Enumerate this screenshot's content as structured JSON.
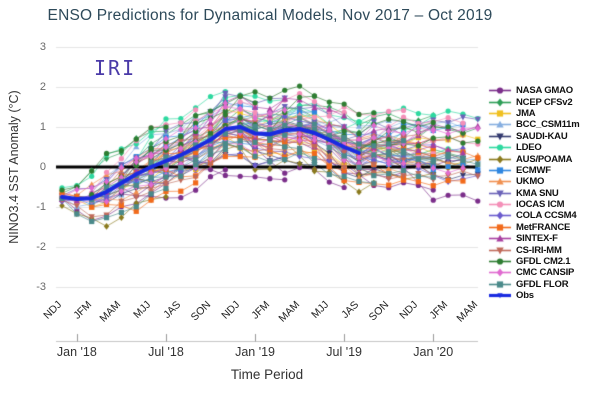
{
  "title": "ENSO Predictions for Dynamical Models, Nov 2017 – Oct 2019",
  "watermark": "IRI",
  "axes": {
    "y_title": "NINO3.4 SST Anomaly (°C)",
    "y_tick_values": [
      3,
      2,
      1,
      0,
      -1,
      -2,
      -3
    ],
    "y_tick_labels": [
      "3",
      "2",
      "1",
      "0",
      "-1",
      "-2",
      "-3"
    ],
    "x_title": "Time Period",
    "season_labels": [
      "NDJ",
      "JFM",
      "MAM",
      "MJJ",
      "JAS",
      "SON",
      "NDJ",
      "JFM",
      "MAM",
      "MJJ",
      "JAS",
      "SON",
      "NDJ",
      "JFM",
      "MAM"
    ],
    "date_labels": [
      "Jan '18",
      "Jul '18",
      "Jan '19",
      "Jul '19",
      "Jan '20"
    ],
    "date_tick_months": [
      1,
      7,
      13,
      19,
      25
    ]
  },
  "legend": {
    "items": [
      {
        "label": "NASA GMAO",
        "color": "#7b2e8a",
        "marker": "circle"
      },
      {
        "label": "NCEP CFSv2",
        "color": "#2e9e57",
        "marker": "diamond"
      },
      {
        "label": "JMA",
        "color": "#f0c020",
        "marker": "square"
      },
      {
        "label": "BCC_CSM11m",
        "color": "#85aee0",
        "marker": "triangle-up"
      },
      {
        "label": "SAUDI-KAU",
        "color": "#32396e",
        "marker": "triangle-down"
      },
      {
        "label": "LDEO",
        "color": "#2ed9a0",
        "marker": "circle"
      },
      {
        "label": "AUS/POAMA",
        "color": "#8a7a1e",
        "marker": "diamond"
      },
      {
        "label": "ECMWF",
        "color": "#2e86e0",
        "marker": "square"
      },
      {
        "label": "UKMO",
        "color": "#f09050",
        "marker": "triangle-up"
      },
      {
        "label": "KMA SNU",
        "color": "#6a62b8",
        "marker": "triangle-down"
      },
      {
        "label": "IOCAS ICM",
        "color": "#f48fb8",
        "marker": "circle"
      },
      {
        "label": "COLA CCSM4",
        "color": "#6a5acd",
        "marker": "diamond"
      },
      {
        "label": "MetFRANCE",
        "color": "#f26a1b",
        "marker": "square"
      },
      {
        "label": "SINTEX-F",
        "color": "#a83fa0",
        "marker": "triangle-up"
      },
      {
        "label": "CS-IRI-MM",
        "color": "#c06a5a",
        "marker": "triangle-down"
      },
      {
        "label": "GFDL CM2.1",
        "color": "#2e7d32",
        "marker": "circle"
      },
      {
        "label": "CMC CANSIP",
        "color": "#e06ad0",
        "marker": "diamond"
      },
      {
        "label": "GFDL FLOR",
        "color": "#4a8a8a",
        "marker": "square"
      },
      {
        "label": "Obs",
        "color": "#1a2be0",
        "marker": "line"
      }
    ]
  },
  "chart_data": {
    "type": "line",
    "title": "ENSO Predictions for Dynamical Models, Nov 2017 – Oct 2019",
    "xlabel": "Time Period",
    "ylabel": "NINO3.4 SST Anomaly (°C)",
    "ylim": [
      -3,
      3
    ],
    "grid": true,
    "legend_position": "right",
    "x_seasons": [
      "NDJ",
      "JFM",
      "MAM",
      "MJJ",
      "JAS",
      "SON",
      "NDJ",
      "JFM",
      "MAM",
      "MJJ",
      "JAS",
      "SON",
      "NDJ",
      "JFM",
      "MAM"
    ],
    "obs": {
      "name": "Obs",
      "color": "#1a2be0",
      "start_month": 0,
      "values": [
        -0.75,
        -0.8,
        -0.78,
        -0.62,
        -0.4,
        -0.18,
        0.0,
        0.15,
        0.3,
        0.48,
        0.68,
        0.95,
        1.0,
        0.84,
        0.82,
        0.92,
        0.95,
        0.85,
        0.68,
        0.5,
        0.35
      ]
    },
    "zero_line": 0,
    "models": [
      {
        "name": "NASA GMAO",
        "color": "#7b2e8a",
        "marker": "circle",
        "bias": -1.05
      },
      {
        "name": "NCEP CFSv2",
        "color": "#2e9e57",
        "marker": "diamond",
        "bias": 0.55
      },
      {
        "name": "JMA",
        "color": "#f0c020",
        "marker": "square",
        "bias": -0.1
      },
      {
        "name": "BCC_CSM11m",
        "color": "#85aee0",
        "marker": "triangle-up",
        "bias": 0.35
      },
      {
        "name": "SAUDI-KAU",
        "color": "#32396e",
        "marker": "triangle-down",
        "bias": -0.5
      },
      {
        "name": "LDEO",
        "color": "#2ed9a0",
        "marker": "circle",
        "bias": 0.8
      },
      {
        "name": "AUS/POAMA",
        "color": "#8a7a1e",
        "marker": "diamond",
        "bias": -0.65
      },
      {
        "name": "ECMWF",
        "color": "#2e86e0",
        "marker": "square",
        "bias": 0.2
      },
      {
        "name": "UKMO",
        "color": "#f09050",
        "marker": "triangle-up",
        "bias": -0.15
      },
      {
        "name": "KMA SNU",
        "color": "#6a62b8",
        "marker": "triangle-down",
        "bias": 0.5
      },
      {
        "name": "IOCAS ICM",
        "color": "#f48fb8",
        "marker": "circle",
        "bias": 0.7
      },
      {
        "name": "COLA CCSM4",
        "color": "#6a5acd",
        "marker": "diamond",
        "bias": -0.35
      },
      {
        "name": "MetFRANCE",
        "color": "#f26a1b",
        "marker": "square",
        "bias": -0.55
      },
      {
        "name": "SINTEX-F",
        "color": "#a83fa0",
        "marker": "triangle-up",
        "bias": 0.4
      },
      {
        "name": "CS-IRI-MM",
        "color": "#c06a5a",
        "marker": "triangle-down",
        "bias": -0.25
      },
      {
        "name": "GFDL CM2.1",
        "color": "#2e7d32",
        "marker": "circle",
        "bias": 0.85
      },
      {
        "name": "CMC CANSIP",
        "color": "#e06ad0",
        "marker": "diamond",
        "bias": 0.1
      },
      {
        "name": "GFDL FLOR",
        "color": "#4a8a8a",
        "marker": "square",
        "bias": -0.45
      }
    ],
    "plume": {
      "note": "forecast trajectories approximated: value = spine[t] + ramp(lead)*(bias_scale*bias + swing*sin) + wiggle",
      "starts": [
        0,
        2,
        4,
        6,
        8,
        10,
        12,
        14,
        16,
        18,
        20,
        22
      ],
      "traj_len": 8,
      "n_months": 29,
      "spine": [
        -0.75,
        -0.8,
        -0.78,
        -0.62,
        -0.4,
        -0.18,
        0.0,
        0.15,
        0.3,
        0.48,
        0.68,
        0.95,
        1.0,
        0.84,
        0.82,
        0.92,
        0.95,
        0.85,
        0.68,
        0.5,
        0.35,
        0.45,
        0.43,
        0.41,
        0.4,
        0.39,
        0.38,
        0.37,
        0.36
      ],
      "bias_scale": 0.62,
      "swing": 0.5,
      "wiggle": 0.09
    }
  },
  "colors": {
    "background": "#ffffff",
    "grid": "#e4e4e4",
    "zero_line": "#000000",
    "title": "#2e4a5a",
    "tick_label": "#6b6b6b",
    "axis_label": "#333333",
    "watermark": "#4a3aa8",
    "date_axis_line": "#c4c4c4",
    "date_axis_tick": "#999999",
    "obs": "#1a2be0"
  }
}
